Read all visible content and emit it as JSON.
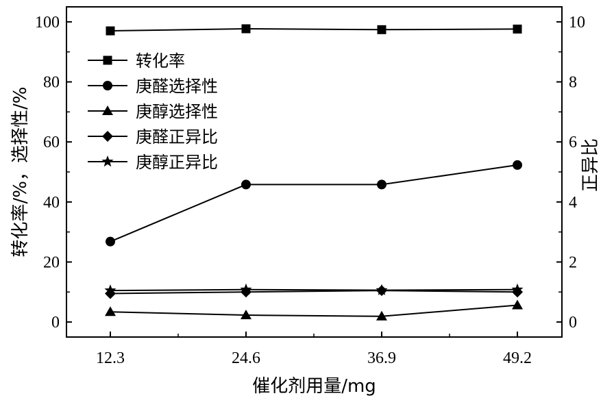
{
  "chart_data": {
    "type": "line",
    "title": "",
    "xlabel": "催化剂用量/mg",
    "ylabel": "转化率/%，选择性/%",
    "y2label": "正异比",
    "categories": [
      "12.3",
      "24.6",
      "36.9",
      "49.2"
    ],
    "x": [
      12.3,
      24.6,
      36.9,
      49.2
    ],
    "ylim": [
      -5,
      105
    ],
    "y2lim": [
      -0.5,
      10.5
    ],
    "yticks": [
      0,
      20,
      40,
      60,
      80,
      100
    ],
    "y2ticks": [
      0,
      2,
      4,
      6,
      8,
      10
    ],
    "legend_position": "upper-left",
    "grid": false,
    "series": [
      {
        "name": "转化率",
        "axis": "left",
        "marker": "square",
        "values": [
          97.0,
          97.7,
          97.4,
          97.6
        ]
      },
      {
        "name": "庚醛选择性",
        "axis": "left",
        "marker": "circle",
        "values": [
          26.8,
          45.8,
          45.8,
          52.3
        ]
      },
      {
        "name": "庚醇选择性",
        "axis": "left",
        "marker": "triangle",
        "values": [
          3.4,
          2.3,
          1.9,
          5.6
        ]
      },
      {
        "name": "庚醛正异比",
        "axis": "right",
        "marker": "diamond",
        "values": [
          0.95,
          1.0,
          1.05,
          1.0
        ]
      },
      {
        "name": "庚醇正异比",
        "axis": "right",
        "marker": "star",
        "values": [
          1.05,
          1.08,
          1.06,
          1.08
        ]
      }
    ]
  }
}
